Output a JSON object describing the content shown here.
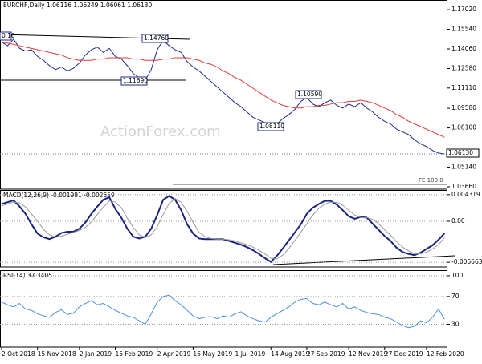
{
  "chart_data": [
    {
      "type": "line",
      "title": "EURCHF,Daily 1.06116 1.06249 1.06061 1.06130",
      "ylim": [
        1.0348,
        1.1775
      ],
      "yticks": [
        {
          "value": 1.1702,
          "label": "1.17020"
        },
        {
          "value": 1.1554,
          "label": "1.15540"
        },
        {
          "value": 1.1406,
          "label": "1.14060"
        },
        {
          "value": 1.1258,
          "label": "1.12580"
        },
        {
          "value": 1.1111,
          "label": "1.11110"
        },
        {
          "value": 1.0958,
          "label": "1.09580"
        },
        {
          "value": 1.081,
          "label": "1.08100"
        },
        {
          "value": 1.0514,
          "label": "1.05140"
        },
        {
          "value": 1.0366,
          "label": "1.03660"
        }
      ],
      "annotations": [
        "0.16",
        "1.14760",
        "1.11690",
        "1.08110",
        "1.10590",
        "FE 100.0",
        "1.06130"
      ],
      "watermark": "ActionForex.com",
      "series": [
        {
          "name": "EURCHF",
          "color": "#1c2b8c",
          "values": [
            1.146,
            1.143,
            1.148,
            1.141,
            1.139,
            1.14,
            1.135,
            1.132,
            1.128,
            1.125,
            1.127,
            1.124,
            1.126,
            1.13,
            1.136,
            1.14,
            1.142,
            1.138,
            1.141,
            1.135,
            1.133,
            1.128,
            1.122,
            1.119,
            1.117,
            1.125,
            1.14,
            1.147,
            1.143,
            1.14,
            1.138,
            1.131,
            1.127,
            1.124,
            1.12,
            1.116,
            1.112,
            1.108,
            1.104,
            1.1,
            1.097,
            1.093,
            1.089,
            1.087,
            1.085,
            1.083,
            1.084,
            1.088,
            1.091,
            1.095,
            1.101,
            1.104,
            1.099,
            1.097,
            1.1,
            1.102,
            1.098,
            1.096,
            1.099,
            1.097,
            1.1,
            1.096,
            1.093,
            1.089,
            1.086,
            1.084,
            1.08,
            1.078,
            1.076,
            1.072,
            1.069,
            1.067,
            1.064,
            1.062,
            1.0613
          ]
        },
        {
          "name": "SMA",
          "color": "#e03c3c",
          "values": [
            1.146,
            1.145,
            1.144,
            1.143,
            1.142,
            1.141,
            1.14,
            1.139,
            1.138,
            1.137,
            1.136,
            1.134,
            1.133,
            1.132,
            1.132,
            1.132,
            1.133,
            1.133,
            1.134,
            1.134,
            1.134,
            1.134,
            1.133,
            1.133,
            1.132,
            1.132,
            1.132,
            1.133,
            1.133,
            1.134,
            1.134,
            1.134,
            1.133,
            1.132,
            1.13,
            1.129,
            1.127,
            1.124,
            1.122,
            1.119,
            1.117,
            1.114,
            1.111,
            1.108,
            1.105,
            1.102,
            1.1,
            1.098,
            1.097,
            1.096,
            1.096,
            1.097,
            1.097,
            1.098,
            1.098,
            1.099,
            1.1,
            1.1,
            1.101,
            1.101,
            1.102,
            1.101,
            1.1,
            1.098,
            1.096,
            1.094,
            1.091,
            1.089,
            1.086,
            1.084,
            1.082,
            1.08,
            1.078,
            1.076,
            1.074
          ]
        }
      ]
    },
    {
      "type": "line",
      "title": "MACD(12,26,9) -0.001981 -0.002659",
      "ylim": [
        -0.00743,
        0.00508
      ],
      "yticks": [
        0.004319,
        {
          "value": 0,
          "label": "0.00"
        },
        -0.006663
      ],
      "series": [
        {
          "name": "MACD",
          "color": "#1a237e",
          "values": [
            0.0028,
            0.0031,
            0.0034,
            0.0024,
            0.0012,
            -0.0005,
            -0.002,
            -0.0026,
            -0.0029,
            -0.0025,
            -0.0019,
            -0.0017,
            -0.0017,
            -0.0012,
            -0.0002,
            0.0012,
            0.0024,
            0.0035,
            0.0039,
            0.002,
            0.0006,
            -0.0012,
            -0.0025,
            -0.0028,
            -0.0025,
            -0.0012,
            0.001,
            0.0035,
            0.0041,
            0.0035,
            0.0018,
            -0.0005,
            -0.002,
            -0.0028,
            -0.0029,
            -0.0029,
            -0.0029,
            -0.0029,
            -0.0032,
            -0.0035,
            -0.0038,
            -0.0042,
            -0.0047,
            -0.0053,
            -0.006,
            -0.0066,
            -0.0056,
            -0.0044,
            -0.0031,
            -0.0018,
            -0.0005,
            0.0012,
            0.0022,
            0.0028,
            0.0033,
            0.0033,
            0.0027,
            0.0018,
            0.0008,
            0.0004,
            0.0007,
            0.0006,
            -0.0004,
            -0.0014,
            -0.0024,
            -0.0032,
            -0.0043,
            -0.005,
            -0.0053,
            -0.0055,
            -0.0051,
            -0.0045,
            -0.0039,
            -0.003,
            -0.001981
          ]
        },
        {
          "name": "Signal",
          "color": "#9a9a9a",
          "values": [
            0.0025,
            0.0028,
            0.0031,
            0.003,
            0.0023,
            0.0012,
            0,
            -0.0013,
            -0.0022,
            -0.0026,
            -0.0024,
            -0.0021,
            -0.0018,
            -0.0015,
            -0.001,
            -0.0001,
            0.0011,
            0.0023,
            0.0033,
            0.0031,
            0.0022,
            0.0005,
            -0.001,
            -0.0022,
            -0.0026,
            -0.0022,
            -0.0009,
            0.0011,
            0.0029,
            0.0037,
            0.0031,
            0.0016,
            -0.0002,
            -0.0018,
            -0.0025,
            -0.0028,
            -0.0029,
            -0.0029,
            -0.003,
            -0.0032,
            -0.0035,
            -0.0038,
            -0.0042,
            -0.0047,
            -0.0053,
            -0.006,
            -0.0061,
            -0.0055,
            -0.0044,
            -0.0031,
            -0.0018,
            -0.0004,
            0.001,
            0.0021,
            0.0028,
            0.0031,
            0.0031,
            0.0026,
            0.0018,
            0.001,
            0.0006,
            0.0006,
            0.0003,
            -0.0004,
            -0.0014,
            -0.0023,
            -0.0033,
            -0.0042,
            -0.0048,
            -0.0053,
            -0.0053,
            -0.005,
            -0.0045,
            -0.0038,
            -0.002659
          ]
        }
      ]
    },
    {
      "type": "line",
      "title": "RSI(14) 37.3405",
      "ylim": [
        -3,
        108
      ],
      "yticks": [
        100,
        70,
        30
      ],
      "categories": [
        "2 Oct 2018",
        null,
        null,
        null,
        null,
        null,
        "15 Nov 2018",
        null,
        null,
        null,
        null,
        null,
        null,
        "2 Jan 2019",
        null,
        null,
        null,
        null,
        null,
        "15 Feb 2019",
        null,
        null,
        null,
        null,
        null,
        null,
        "2 Apr 2019",
        null,
        null,
        null,
        null,
        null,
        "16 May 2019",
        null,
        null,
        null,
        null,
        null,
        null,
        "1 Jul 2019",
        null,
        null,
        null,
        null,
        null,
        "14 Aug 2019",
        null,
        null,
        null,
        null,
        null,
        "27 Sep 2019",
        null,
        null,
        null,
        null,
        null,
        null,
        "12 Nov 2019",
        null,
        null,
        null,
        null,
        null,
        "27 Dec 2019",
        null,
        null,
        null,
        null,
        null,
        null,
        "12 Feb 2020",
        null,
        null,
        null
      ],
      "series": [
        {
          "name": "RSI",
          "color": "#4a90e2",
          "values": [
            62,
            58,
            55,
            60,
            52,
            50,
            45,
            42,
            40,
            47,
            51,
            44,
            46,
            55,
            60,
            64,
            58,
            60,
            55,
            50,
            46,
            42,
            40,
            35,
            30,
            45,
            62,
            70,
            72,
            64,
            58,
            50,
            42,
            38,
            40,
            41,
            38,
            42,
            40,
            45,
            48,
            42,
            38,
            35,
            33,
            40,
            45,
            50,
            55,
            62,
            66,
            67,
            60,
            58,
            62,
            58,
            55,
            60,
            52,
            55,
            50,
            47,
            45,
            44,
            40,
            38,
            33,
            28,
            25,
            27,
            35,
            32,
            40,
            52,
            37.3405
          ]
        }
      ]
    }
  ]
}
